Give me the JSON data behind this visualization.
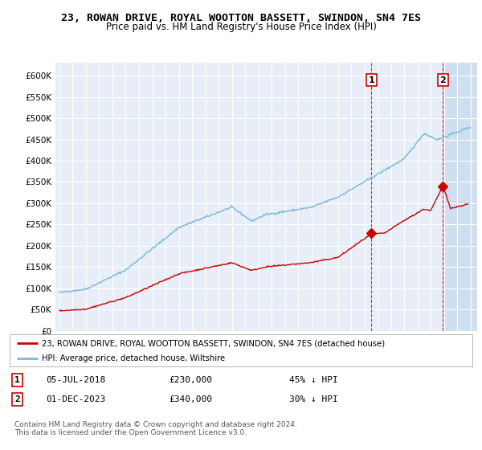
{
  "title": "23, ROWAN DRIVE, ROYAL WOOTTON BASSETT, SWINDON, SN4 7ES",
  "subtitle": "Price paid vs. HM Land Registry's House Price Index (HPI)",
  "ylabel_ticks": [
    "£0",
    "£50K",
    "£100K",
    "£150K",
    "£200K",
    "£250K",
    "£300K",
    "£350K",
    "£400K",
    "£450K",
    "£500K",
    "£550K",
    "£600K"
  ],
  "ytick_values": [
    0,
    50000,
    100000,
    150000,
    200000,
    250000,
    300000,
    350000,
    400000,
    450000,
    500000,
    550000,
    600000
  ],
  "ylim": [
    0,
    630000
  ],
  "xlim_left": 1994.7,
  "xlim_right": 2026.5,
  "hpi_color": "#7ab8d9",
  "price_color": "#cc0000",
  "background_color": "#e8eef8",
  "shade_color": "#d0dff0",
  "grid_color": "#ffffff",
  "point1_x": 2018.52,
  "point1_y": 230000,
  "point2_x": 2023.92,
  "point2_y": 340000,
  "vline1_x": 2018.52,
  "vline2_x": 2023.92,
  "legend_line1": "23, ROWAN DRIVE, ROYAL WOOTTON BASSETT, SWINDON, SN4 7ES (detached house)",
  "legend_line2": "HPI: Average price, detached house, Wiltshire",
  "table_row1_num": "1",
  "table_row1_date": "05-JUL-2018",
  "table_row1_price": "£230,000",
  "table_row1_hpi": "45% ↓ HPI",
  "table_row2_num": "2",
  "table_row2_date": "01-DEC-2023",
  "table_row2_price": "£340,000",
  "table_row2_hpi": "30% ↓ HPI",
  "footnote": "Contains HM Land Registry data © Crown copyright and database right 2024.\nThis data is licensed under the Open Government Licence v3.0."
}
